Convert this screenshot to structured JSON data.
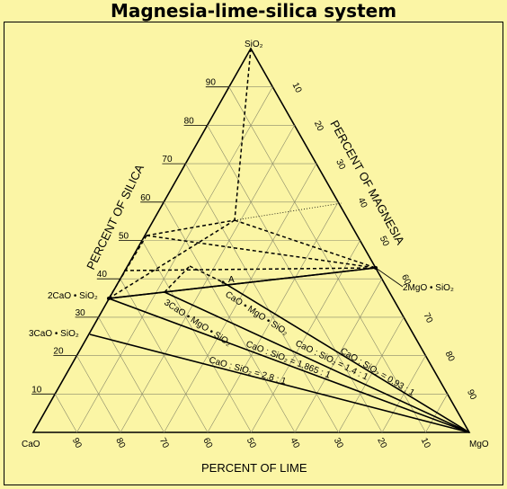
{
  "title": "Magnesia-lime-silica system",
  "axes": {
    "silica_label": "PERCENT OF SILICA",
    "magnesia_label": "PERCENT OF MAGNESIA",
    "lime_label": "PERCENT OF LIME"
  },
  "vertices": {
    "top": "SiO₂",
    "left": "CaO",
    "right": "MgO"
  },
  "ticks": {
    "silica": [
      "10",
      "20",
      "30",
      "40",
      "50",
      "60",
      "70",
      "80",
      "90"
    ],
    "magnesia": [
      "10",
      "20",
      "30",
      "40",
      "50",
      "60",
      "70",
      "80",
      "90"
    ],
    "lime": [
      "90",
      "80",
      "70",
      "60",
      "50",
      "40",
      "30",
      "20",
      "10"
    ]
  },
  "compounds": {
    "c2s": "2CaO • SiO₂",
    "c3s": "3CaO • SiO₂",
    "m2s": "2MgO • SiO₂",
    "cms": "CaO • MgO • SiO₂",
    "c3ms2": "3CaO • MgO • SiO₂"
  },
  "point_a": "A",
  "ratio_lines": [
    "CaO : SiO₂ = 0.93 : 1",
    "CaO : SiO₂ = 1.4 : 1",
    "CaO : SiO₂ = 1.865 : 1",
    "CaO : SiO₂ = 2.8 : 1"
  ]
}
